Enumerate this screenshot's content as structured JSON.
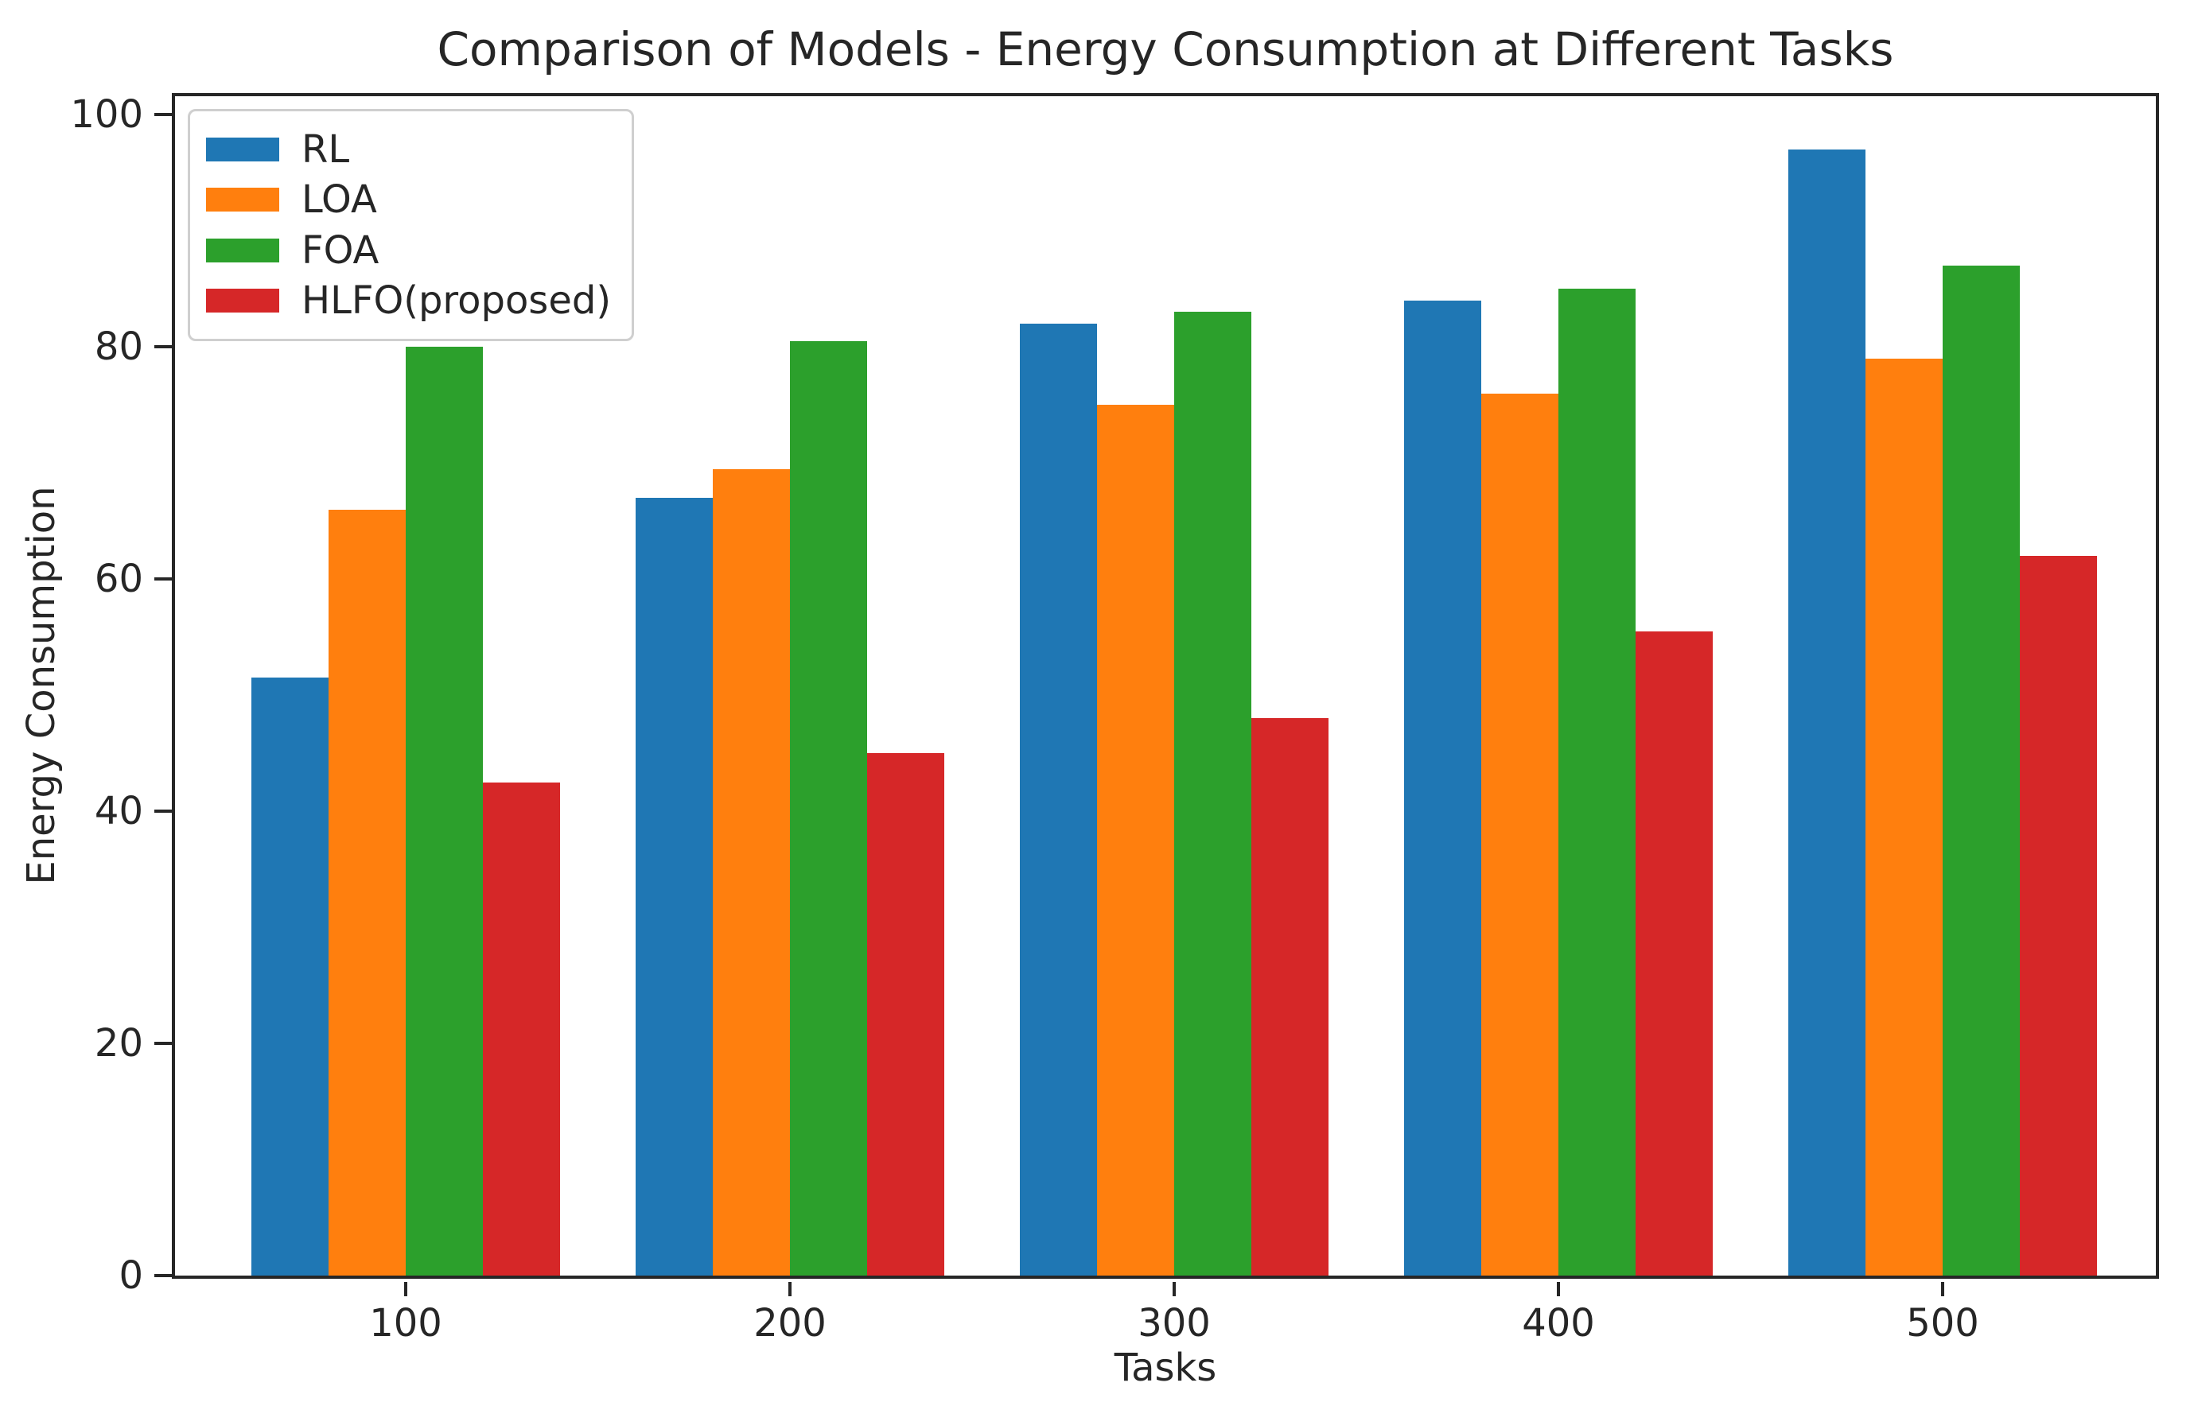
{
  "chart_data": {
    "type": "bar",
    "title": "Comparison of Models - Energy Consumption at Different Tasks",
    "xlabel": "Tasks",
    "ylabel": "Energy Consumption",
    "categories": [
      "100",
      "200",
      "300",
      "400",
      "500"
    ],
    "series": [
      {
        "name": "RL",
        "color": "#1f77b4",
        "values": [
          51.5,
          67,
          82,
          84,
          97
        ]
      },
      {
        "name": "LOA",
        "color": "#ff7f0e",
        "values": [
          66,
          69.5,
          75,
          76,
          79
        ]
      },
      {
        "name": "FOA",
        "color": "#2ca02c",
        "values": [
          80,
          80.5,
          83,
          85,
          87
        ]
      },
      {
        "name": "HLFO(proposed)",
        "color": "#d62728",
        "values": [
          42.5,
          45,
          48,
          55.5,
          62
        ]
      }
    ],
    "ylim": [
      0,
      101.6
    ],
    "yticks": [
      0,
      20,
      40,
      60,
      80,
      100
    ],
    "grid": false,
    "legend_position": "upper left",
    "axis_color": "#262626"
  }
}
